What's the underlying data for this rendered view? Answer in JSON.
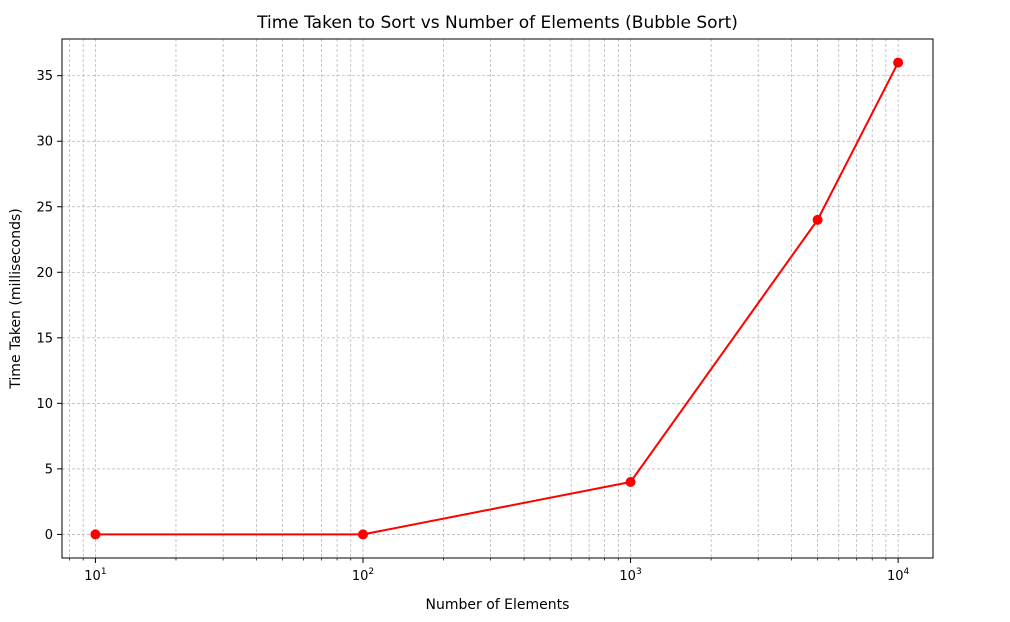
{
  "chart_data": {
    "type": "line",
    "title": "Time Taken to Sort vs Number of Elements (Bubble Sort)",
    "xlabel": "Number of Elements",
    "ylabel": "Time Taken (milliseconds)",
    "xscale": "log",
    "xlim": [
      7.5,
      13500
    ],
    "ylim": [
      -1.8,
      37.8
    ],
    "grid": true,
    "legend": "none",
    "xticks": [
      {
        "value": 10,
        "base": "10",
        "exp": "1"
      },
      {
        "value": 100,
        "base": "10",
        "exp": "2"
      },
      {
        "value": 1000,
        "base": "10",
        "exp": "3"
      },
      {
        "value": 10000,
        "base": "10",
        "exp": "4"
      }
    ],
    "yticks": [
      0,
      5,
      10,
      15,
      20,
      25,
      30,
      35
    ],
    "series": [
      {
        "color": "#ff0000",
        "x": [
          10,
          100,
          1000,
          5000,
          10000
        ],
        "y": [
          0,
          0,
          4,
          24,
          36
        ]
      }
    ]
  }
}
